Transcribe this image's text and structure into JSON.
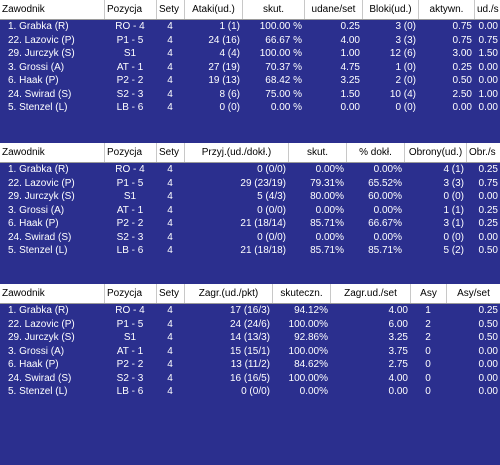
{
  "table1": {
    "headers": [
      "Zawodnik",
      "Pozycja",
      "Sety",
      "Ataki(ud.)",
      "skut.",
      "udane/set",
      "Bloki(ud.)",
      "aktywn.",
      "ud./s"
    ],
    "rows": [
      [
        "1. Grabka (R)",
        "RO - 4",
        "4",
        "1 (1)",
        "100.00 %",
        "0.25",
        "3 (0)",
        "0.75",
        "0.00"
      ],
      [
        "22. Lazovic (P)",
        "P1 - 5",
        "4",
        "24 (16)",
        "66.67 %",
        "4.00",
        "3 (3)",
        "0.75",
        "0.75"
      ],
      [
        "29. Jurczyk (S)",
        "S1",
        "4",
        "4 (4)",
        "100.00 %",
        "1.00",
        "12 (6)",
        "3.00",
        "1.50"
      ],
      [
        "3. Grossi (A)",
        "AT - 1",
        "4",
        "27 (19)",
        "70.37 %",
        "4.75",
        "1 (0)",
        "0.25",
        "0.00"
      ],
      [
        "6. Haak (P)",
        "P2 - 2",
        "4",
        "19 (13)",
        "68.42 %",
        "3.25",
        "2 (0)",
        "0.50",
        "0.00"
      ],
      [
        "24. Swirad (S)",
        "S2 - 3",
        "4",
        "8 (6)",
        "75.00 %",
        "1.50",
        "10 (4)",
        "2.50",
        "1.00"
      ],
      [
        "5. Stenzel (L)",
        "LB - 6",
        "4",
        "0 (0)",
        "0.00 %",
        "0.00",
        "0 (0)",
        "0.00",
        "0.00"
      ]
    ]
  },
  "table2": {
    "headers": [
      "Zawodnik",
      "Pozycja",
      "Sety",
      "Przyj.(ud./dokł.)",
      "skut.",
      "% dokł.",
      "Obrony(ud.)",
      "Obr./s"
    ],
    "rows": [
      [
        "1. Grabka (R)",
        "RO - 4",
        "4",
        "0 (0/0)",
        "0.00%",
        "0.00%",
        "4 (1)",
        "0.25"
      ],
      [
        "22. Lazovic (P)",
        "P1 - 5",
        "4",
        "29 (23/19)",
        "79.31%",
        "65.52%",
        "3 (3)",
        "0.75"
      ],
      [
        "29. Jurczyk (S)",
        "S1",
        "4",
        "5 (4/3)",
        "80.00%",
        "60.00%",
        "0 (0)",
        "0.00"
      ],
      [
        "3. Grossi (A)",
        "AT - 1",
        "4",
        "0 (0/0)",
        "0.00%",
        "0.00%",
        "1 (1)",
        "0.25"
      ],
      [
        "6. Haak (P)",
        "P2 - 2",
        "4",
        "21 (18/14)",
        "85.71%",
        "66.67%",
        "3 (1)",
        "0.25"
      ],
      [
        "24. Swirad (S)",
        "S2 - 3",
        "4",
        "0 (0/0)",
        "0.00%",
        "0.00%",
        "0 (0)",
        "0.00"
      ],
      [
        "5. Stenzel (L)",
        "LB - 6",
        "4",
        "21 (18/18)",
        "85.71%",
        "85.71%",
        "5 (2)",
        "0.50"
      ]
    ]
  },
  "table3": {
    "headers": [
      "Zawodnik",
      "Pozycja",
      "Sety",
      "Zagr.(ud./pkt)",
      "skuteczn.",
      "Zagr.ud./set",
      "Asy",
      "Asy/set"
    ],
    "rows": [
      [
        "1. Grabka (R)",
        "RO - 4",
        "4",
        "17 (16/3)",
        "94.12%",
        "4.00",
        "1",
        "0.25"
      ],
      [
        "22. Lazovic (P)",
        "P1 - 5",
        "4",
        "24 (24/6)",
        "100.00%",
        "6.00",
        "2",
        "0.50"
      ],
      [
        "29. Jurczyk (S)",
        "S1",
        "4",
        "14 (13/3)",
        "92.86%",
        "3.25",
        "2",
        "0.50"
      ],
      [
        "3. Grossi (A)",
        "AT - 1",
        "4",
        "15 (15/1)",
        "100.00%",
        "3.75",
        "0",
        "0.00"
      ],
      [
        "6. Haak (P)",
        "P2 - 2",
        "4",
        "13 (11/2)",
        "84.62%",
        "2.75",
        "0",
        "0.00"
      ],
      [
        "24. Swirad (S)",
        "S2 - 3",
        "4",
        "16 (16/5)",
        "100.00%",
        "4.00",
        "0",
        "0.00"
      ],
      [
        "5. Stenzel (L)",
        "LB - 6",
        "4",
        "0 (0/0)",
        "0.00%",
        "0.00",
        "0",
        "0.00"
      ]
    ]
  }
}
